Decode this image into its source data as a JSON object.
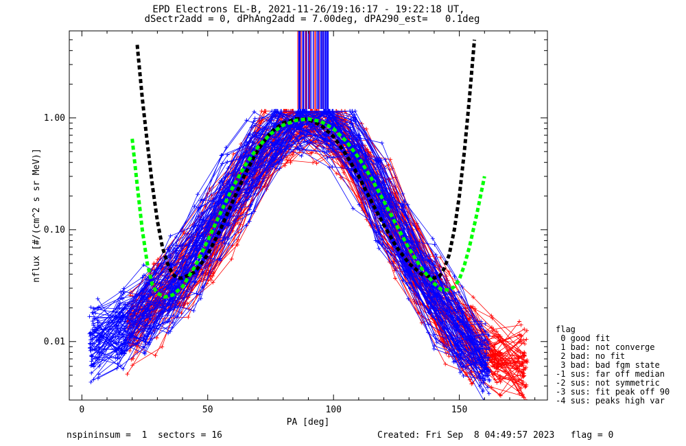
{
  "header": {
    "title_line1": "EPD Electrons EL-B, 2021-11-26/19:16:17 - 19:22:18 UT,",
    "title_line2": "dSectr2add = 0, dPhAng2add = 7.00deg, dPA290_est=   0.1deg"
  },
  "legend": {
    "title": "flag",
    "items": [
      " 0 good fit",
      " 1 bad: not converge",
      " 2 bad: no fit",
      " 3 bad: bad fgm state",
      "-1 sus: far off median",
      "-2 sus: not symmetric",
      "-3 sus: fit peak off 90",
      "-4 sus: peaks high var"
    ]
  },
  "footer": {
    "left": "nspininsum =  1  sectors = 16",
    "right": "Created: Fri Sep  8 04:49:57 2023   flag = 0"
  },
  "colors": {
    "red": "#ff0000",
    "blue": "#0000ff",
    "fit_black": "#000000",
    "fit_green": "#00ff00"
  },
  "chart_data": {
    "type": "line",
    "xlabel": "PA [deg]",
    "ylabel": "nflux [#/(cm^2 s sr MeV)]",
    "xlim": [
      -5,
      185
    ],
    "ylim": [
      0.003,
      6.0
    ],
    "yscale": "log",
    "xticks": [
      0,
      50,
      100,
      150
    ],
    "xtick_labels": [
      "0",
      "50",
      "100",
      "150"
    ],
    "yticks": [
      0.01,
      0.1,
      1.0
    ],
    "ytick_labels": [
      "0.01",
      "0.10",
      "1.00"
    ],
    "grid": false,
    "legend_position": "right-bottom",
    "series": [
      {
        "color": "red",
        "style": "line+plus",
        "typical_profile": {
          "x": [
            20,
            28,
            40,
            50,
            62,
            72,
            80,
            86,
            92,
            98,
            105,
            112,
            120,
            130,
            140,
            150,
            162,
            175
          ],
          "y": [
            0.012,
            0.02,
            0.035,
            0.07,
            0.2,
            0.45,
            0.8,
            1.05,
            0.95,
            0.85,
            0.6,
            0.35,
            0.18,
            0.07,
            0.025,
            0.012,
            0.008,
            0.006
          ]
        }
      },
      {
        "color": "blue",
        "style": "line+plus",
        "typical_profile": {
          "x": [
            5,
            15,
            27,
            40,
            50,
            62,
            72,
            80,
            86,
            92,
            98,
            105,
            112,
            120,
            130,
            140,
            150,
            160
          ],
          "y": [
            0.01,
            0.012,
            0.02,
            0.04,
            0.1,
            0.25,
            0.55,
            0.85,
            1.0,
            1.0,
            0.9,
            0.65,
            0.35,
            0.15,
            0.06,
            0.025,
            0.012,
            0.006
          ]
        }
      },
      {
        "color": "fit_black",
        "style": "dashed-thick",
        "x": [
          22,
          24,
          26,
          28,
          30,
          32,
          34,
          36,
          38,
          40,
          45,
          50,
          55,
          60,
          65,
          70,
          75,
          80,
          85,
          90,
          95,
          100,
          105,
          110,
          115,
          120,
          125,
          130,
          135,
          140,
          142,
          144,
          146,
          148,
          150,
          152,
          154,
          156
        ],
        "y": [
          4.5,
          1.5,
          0.6,
          0.25,
          0.12,
          0.07,
          0.05,
          0.04,
          0.037,
          0.037,
          0.042,
          0.06,
          0.1,
          0.18,
          0.32,
          0.52,
          0.74,
          0.9,
          0.98,
          0.97,
          0.86,
          0.68,
          0.47,
          0.3,
          0.18,
          0.11,
          0.07,
          0.05,
          0.04,
          0.037,
          0.038,
          0.045,
          0.06,
          0.1,
          0.2,
          0.5,
          1.5,
          5.0
        ]
      },
      {
        "color": "fit_green",
        "style": "dashed-thick",
        "x": [
          20,
          22,
          24,
          26,
          28,
          30,
          33,
          36,
          40,
          45,
          50,
          55,
          60,
          65,
          70,
          75,
          80,
          85,
          90,
          95,
          100,
          105,
          110,
          115,
          120,
          125,
          130,
          135,
          140,
          143,
          146,
          148,
          150,
          152,
          154,
          157,
          160
        ],
        "y": [
          0.65,
          0.25,
          0.1,
          0.05,
          0.032,
          0.027,
          0.025,
          0.026,
          0.031,
          0.047,
          0.08,
          0.14,
          0.24,
          0.38,
          0.55,
          0.72,
          0.86,
          0.95,
          0.98,
          0.93,
          0.8,
          0.62,
          0.44,
          0.29,
          0.18,
          0.11,
          0.068,
          0.045,
          0.033,
          0.029,
          0.029,
          0.031,
          0.036,
          0.048,
          0.07,
          0.14,
          0.3
        ]
      }
    ]
  }
}
